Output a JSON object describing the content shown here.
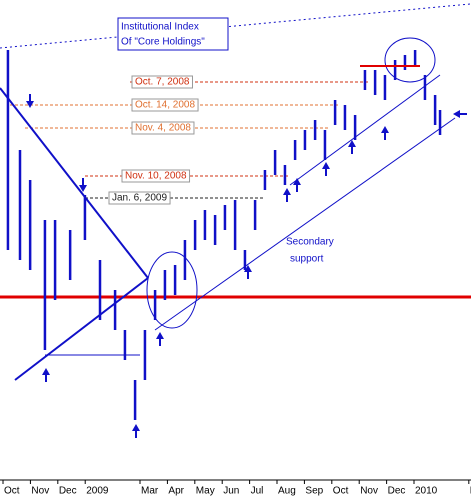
{
  "chart_data": {
    "type": "range-bar",
    "title_lines": [
      "Institutional Index",
      "Of \"Core Holdings\""
    ],
    "support_label_lines": [
      "Secondary",
      "support"
    ],
    "xlim": [
      -0.11,
      17.08
    ],
    "ylim": [
      0,
      480
    ],
    "xticks": [
      {
        "value": 0,
        "label": "Oct"
      },
      {
        "value": 1,
        "label": "Nov"
      },
      {
        "value": 2,
        "label": "Dec"
      },
      {
        "value": 3,
        "label": "2009"
      },
      {
        "value": 5,
        "label": "Mar"
      },
      {
        "value": 6,
        "label": "Apr"
      },
      {
        "value": 7,
        "label": "May"
      },
      {
        "value": 8,
        "label": "Jun"
      },
      {
        "value": 9,
        "label": "Jul"
      },
      {
        "value": 10,
        "label": "Aug"
      },
      {
        "value": 11,
        "label": "Sep"
      },
      {
        "value": 12,
        "label": "Oct"
      },
      {
        "value": 13,
        "label": "Nov"
      },
      {
        "value": 14,
        "label": "Dec"
      },
      {
        "value": 15,
        "label": "2010"
      },
      {
        "value": 17,
        "label": "Ma"
      }
    ],
    "bars": {
      "color": "#1010c8",
      "x": [
        0.18,
        0.62,
        0.99,
        1.53,
        1.9,
        2.45,
        2.99,
        3.54,
        4.09,
        4.45,
        4.82,
        5.18,
        5.55,
        5.91,
        6.28,
        6.64,
        7.01,
        7.37,
        7.74,
        8.1,
        8.47,
        8.83,
        9.2,
        9.56,
        9.93,
        10.29,
        10.66,
        11.02,
        11.39,
        11.75,
        12.12,
        12.48,
        12.85,
        13.21,
        13.58,
        13.94,
        14.31,
        14.67,
        15.04,
        15.4,
        15.77,
        15.95
      ],
      "high": [
        430,
        330,
        300,
        260,
        260,
        250,
        285,
        220,
        190,
        150,
        100,
        150,
        190,
        210,
        215,
        240,
        260,
        270,
        265,
        275,
        280,
        230,
        280,
        310,
        330,
        315,
        340,
        350,
        360,
        350,
        380,
        375,
        365,
        410,
        410,
        405,
        420,
        425,
        430,
        405,
        385,
        370
      ],
      "low": [
        230,
        220,
        210,
        130,
        180,
        200,
        240,
        160,
        150,
        120,
        60,
        100,
        160,
        180,
        185,
        200,
        230,
        240,
        235,
        250,
        230,
        210,
        250,
        290,
        305,
        295,
        320,
        330,
        340,
        320,
        355,
        350,
        340,
        390,
        385,
        380,
        400,
        410,
        415,
        380,
        355,
        345
      ]
    },
    "levels": [
      {
        "label": "Oct. 7, 2008",
        "value": 398,
        "color": "#d03010"
      },
      {
        "label": "Oct. 14, 2008",
        "value": 375,
        "color": "#e07030"
      },
      {
        "label": "Nov. 4, 2008",
        "value": 352,
        "color": "#e07030"
      },
      {
        "label": "Nov. 10, 2008",
        "value": 304,
        "color": "#d03010"
      },
      {
        "label": "Jan. 6, 2009",
        "value": 282,
        "color": "#202020"
      }
    ],
    "support_level": {
      "value": 183,
      "color": "#e00000"
    }
  }
}
